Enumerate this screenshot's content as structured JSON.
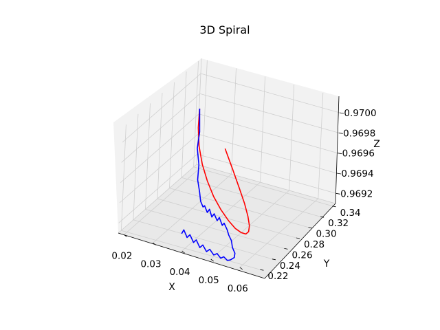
{
  "chart_data": {
    "type": "line",
    "projection": "3d",
    "title": "3D Spiral",
    "xlabel": "X",
    "ylabel": "Y",
    "zlabel": "Z",
    "xlim": [
      0.018,
      0.066
    ],
    "ylim": [
      0.215,
      0.345
    ],
    "zlim": [
      0.9691,
      0.97015
    ],
    "x_ticks": [
      "0.02",
      "0.03",
      "0.04",
      "0.05",
      "0.06"
    ],
    "y_ticks": [
      "0.22",
      "0.24",
      "0.26",
      "0.28",
      "0.30",
      "0.32",
      "0.34"
    ],
    "z_ticks": [
      "0.9692",
      "0.9694",
      "0.9696",
      "0.9698",
      "0.9700"
    ],
    "grid": true,
    "series": [
      {
        "color": "#ff0000",
        "style": "smooth spiral",
        "points": [
          [
            0.0325,
            0.2725,
            0.97015
          ],
          [
            0.0329,
            0.2695,
            0.96998
          ],
          [
            0.034,
            0.2668,
            0.96982
          ],
          [
            0.0358,
            0.2645,
            0.96967
          ],
          [
            0.0381,
            0.2629,
            0.96953
          ],
          [
            0.0407,
            0.262,
            0.9694
          ],
          [
            0.0434,
            0.262,
            0.96929
          ],
          [
            0.0459,
            0.2629,
            0.9692
          ],
          [
            0.0481,
            0.2645,
            0.96913
          ],
          [
            0.0497,
            0.2668,
            0.96909
          ],
          [
            0.0508,
            0.2695,
            0.96907
          ],
          [
            0.0511,
            0.2725,
            0.96908
          ],
          [
            0.0507,
            0.2755,
            0.96912
          ],
          [
            0.0495,
            0.2782,
            0.96919
          ],
          [
            0.0477,
            0.2805,
            0.96929
          ],
          [
            0.0453,
            0.282,
            0.96942
          ],
          [
            0.0426,
            0.2828,
            0.96958
          ],
          [
            0.0398,
            0.2826,
            0.96976
          ]
        ]
      },
      {
        "color": "#0000ff",
        "style": "noisy walk",
        "points": [
          [
            0.0325,
            0.2725,
            0.97015
          ],
          [
            0.0328,
            0.2728,
            0.96992
          ],
          [
            0.0322,
            0.2731,
            0.96975
          ],
          [
            0.0331,
            0.2725,
            0.9696
          ],
          [
            0.0327,
            0.2736,
            0.96944
          ],
          [
            0.0335,
            0.274,
            0.96932
          ],
          [
            0.0341,
            0.2733,
            0.96924
          ],
          [
            0.0347,
            0.2748,
            0.96918
          ],
          [
            0.0353,
            0.2744,
            0.9692
          ],
          [
            0.036,
            0.2761,
            0.96913
          ],
          [
            0.0368,
            0.2757,
            0.96917
          ],
          [
            0.0374,
            0.2772,
            0.96909
          ],
          [
            0.0382,
            0.2769,
            0.96913
          ],
          [
            0.039,
            0.2786,
            0.96906
          ],
          [
            0.0398,
            0.278,
            0.9691
          ],
          [
            0.0406,
            0.2797,
            0.96902
          ],
          [
            0.0413,
            0.2792,
            0.96905
          ],
          [
            0.0421,
            0.281,
            0.96898
          ],
          [
            0.0428,
            0.2803,
            0.96894
          ],
          [
            0.0435,
            0.282,
            0.96888
          ],
          [
            0.0441,
            0.2813,
            0.96882
          ],
          [
            0.0447,
            0.283,
            0.96876
          ],
          [
            0.0444,
            0.2838,
            0.96871
          ],
          [
            0.0432,
            0.2832,
            0.96868
          ],
          [
            0.042,
            0.2842,
            0.96866
          ],
          [
            0.0408,
            0.2836,
            0.96869
          ],
          [
            0.0396,
            0.2847,
            0.96866
          ],
          [
            0.0384,
            0.284,
            0.9687
          ],
          [
            0.0371,
            0.285,
            0.96867
          ],
          [
            0.0358,
            0.2843,
            0.96872
          ],
          [
            0.0345,
            0.2854,
            0.96868
          ],
          [
            0.0333,
            0.2846,
            0.96874
          ],
          [
            0.0321,
            0.2856,
            0.9687
          ],
          [
            0.0309,
            0.285,
            0.96877
          ],
          [
            0.0298,
            0.286,
            0.96873
          ],
          [
            0.0286,
            0.2853,
            0.9688
          ],
          [
            0.0275,
            0.2862,
            0.96876
          ],
          [
            0.0264,
            0.2855,
            0.96883
          ],
          [
            0.0255,
            0.2866,
            0.96878
          ]
        ]
      }
    ]
  }
}
